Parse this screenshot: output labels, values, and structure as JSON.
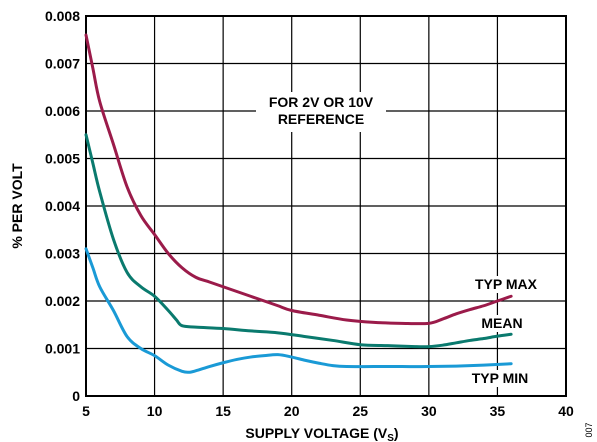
{
  "chart_data": {
    "type": "line",
    "xlabel": "SUPPLY VOLTAGE (V",
    "xlabel_sub": "S",
    "xlabel_close": ")",
    "ylabel": "% PER VOLT",
    "xlim": [
      5,
      40
    ],
    "ylim": [
      0,
      0.008
    ],
    "grid": true,
    "x_ticks": [
      "5",
      "10",
      "15",
      "20",
      "25",
      "30",
      "35",
      "40"
    ],
    "y_ticks": [
      "0",
      "0.001",
      "0.002",
      "0.003",
      "0.004",
      "0.005",
      "0.006",
      "0.007",
      "0.008"
    ],
    "annotation": [
      "FOR 2V OR 10V",
      "REFERENCE"
    ],
    "side_code": "007",
    "series": [
      {
        "name": "TYP MAX",
        "color": "#9b1b4a",
        "x": [
          5,
          5.5,
          6,
          7,
          8,
          9,
          10,
          11,
          12,
          13,
          14,
          15,
          16,
          17,
          18,
          19,
          20,
          22,
          24,
          26,
          28,
          30,
          31,
          32,
          33,
          34,
          35,
          36
        ],
        "y": [
          0.0076,
          0.0069,
          0.0062,
          0.0053,
          0.0044,
          0.0038,
          0.0034,
          0.003,
          0.0027,
          0.0025,
          0.0024,
          0.0023,
          0.0022,
          0.0021,
          0.002,
          0.0019,
          0.0018,
          0.0017,
          0.0016,
          0.00155,
          0.00153,
          0.00153,
          0.00162,
          0.00173,
          0.00182,
          0.0019,
          0.002,
          0.0021
        ]
      },
      {
        "name": "MEAN",
        "color": "#0a7a6e",
        "x": [
          5,
          5.5,
          6,
          7,
          8,
          9,
          10,
          11,
          11.6,
          12,
          13,
          15,
          17,
          19,
          21,
          23,
          25,
          27,
          29,
          30,
          31,
          32,
          33,
          34,
          35,
          36
        ],
        "y": [
          0.0055,
          0.0049,
          0.0043,
          0.0033,
          0.0026,
          0.0023,
          0.0021,
          0.0018,
          0.0016,
          0.00148,
          0.00145,
          0.00142,
          0.00137,
          0.00133,
          0.00125,
          0.00117,
          0.00108,
          0.00106,
          0.00104,
          0.00104,
          0.00107,
          0.00112,
          0.00117,
          0.00121,
          0.00126,
          0.0013
        ]
      },
      {
        "name": "TYP MIN",
        "color": "#1a9ad6",
        "x": [
          5,
          5.5,
          6,
          7,
          8,
          9,
          10,
          11,
          12,
          12.5,
          13,
          14,
          15,
          16,
          17,
          18,
          19,
          20,
          21,
          22,
          23,
          24,
          26,
          28,
          30,
          32,
          34,
          36
        ],
        "y": [
          0.0031,
          0.0027,
          0.0023,
          0.0018,
          0.00125,
          0.001,
          0.00085,
          0.00065,
          0.00052,
          0.0005,
          0.00053,
          0.00062,
          0.0007,
          0.00077,
          0.00082,
          0.00085,
          0.00087,
          0.00082,
          0.00075,
          0.00069,
          0.00064,
          0.00062,
          0.00062,
          0.00062,
          0.00062,
          0.00063,
          0.00065,
          0.00068
        ]
      }
    ]
  }
}
